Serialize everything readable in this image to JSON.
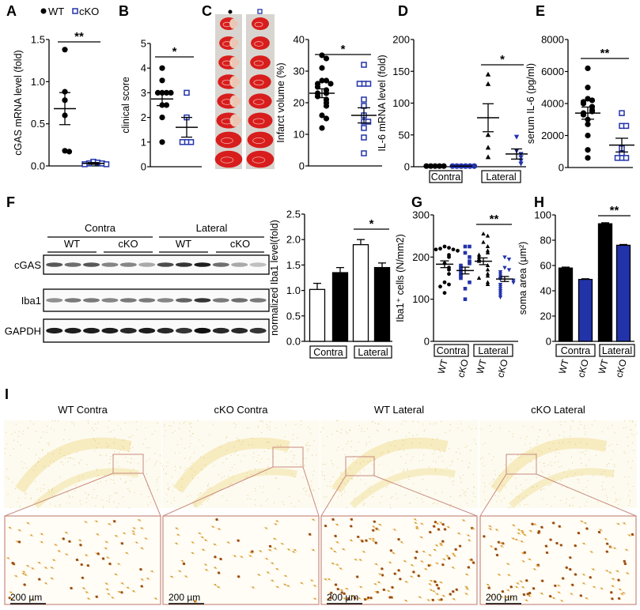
{
  "panel_labels": [
    "A",
    "B",
    "C",
    "D",
    "E",
    "F",
    "G",
    "H",
    "I"
  ],
  "colors": {
    "wt": "#000000",
    "cko": "#2233aa",
    "significance": "#000000",
    "inset_frame": "#c98a7e"
  },
  "panel_c": {
    "legend_markers": [
      "filled-circle",
      "open-square"
    ]
  },
  "panel_f_blot": {
    "header": [
      "Contra",
      "Lateral"
    ],
    "subheader": [
      "WT",
      "cKO",
      "WT",
      "cKO"
    ],
    "rows": [
      "cGAS",
      "Iba1",
      "GAPDH"
    ]
  },
  "panel_i": {
    "titles": [
      "WT Contra",
      "cKO Contra",
      "WT Lateral",
      "cKO Lateral"
    ],
    "scale_bar": "200 µm"
  },
  "chart_data": [
    {
      "panel": "A",
      "type": "scatter",
      "ylabel": "cGAS mRNA level (fold)",
      "ylim": [
        0,
        1.5
      ],
      "yticks": [
        "0.0",
        "0.5",
        "1.0",
        "1.5"
      ],
      "legend": [
        "WT",
        "cKO"
      ],
      "legend_placement": "top",
      "groups": [
        {
          "name": "WT",
          "marker": "filled-circle",
          "color": "#000000",
          "values": [
            1.38,
            0.88,
            0.78,
            0.6,
            0.18,
            0.17
          ],
          "mean": 0.68,
          "sem": 0.19
        },
        {
          "name": "cKO",
          "marker": "open-square",
          "color": "#2233aa",
          "values": [
            0.05,
            0.04,
            0.03,
            0.03,
            0.02,
            0.02
          ],
          "mean": 0.03,
          "sem": 0.01
        }
      ],
      "significance": [
        {
          "groups": [
            0,
            1
          ],
          "label": "**"
        }
      ]
    },
    {
      "panel": "B",
      "type": "scatter",
      "ylabel": "clinical score",
      "ylim": [
        0,
        5
      ],
      "yticks": [
        "0",
        "1",
        "2",
        "3",
        "4",
        "5"
      ],
      "groups": [
        {
          "marker": "filled-circle",
          "color": "#000000",
          "values": [
            4,
            3.5,
            3,
            3,
            3,
            3,
            2.5,
            2.5,
            2,
            1
          ],
          "mean": 2.75,
          "sem": 0.27
        },
        {
          "marker": "open-square",
          "color": "#2233aa",
          "values": [
            3,
            2,
            1,
            1,
            1
          ],
          "mean": 1.6,
          "sem": 0.4
        }
      ],
      "significance": [
        {
          "groups": [
            0,
            1
          ],
          "label": "*"
        }
      ]
    },
    {
      "panel": "C",
      "type": "scatter",
      "ylabel": "Infarct volume (%)",
      "ylim": [
        0,
        40
      ],
      "yticks": [
        "0",
        "10",
        "20",
        "30",
        "40"
      ],
      "groups": [
        {
          "marker": "filled-circle",
          "color": "#000000",
          "values": [
            35,
            34,
            31,
            27,
            27,
            26,
            26,
            25,
            24,
            23,
            23,
            22,
            21,
            20,
            19,
            16,
            15,
            12
          ],
          "mean": 23,
          "sem": 1.4
        },
        {
          "marker": "open-square",
          "color": "#2233aa",
          "values": [
            32,
            26,
            26,
            26,
            21,
            19,
            16,
            14,
            14,
            12,
            9,
            4
          ],
          "mean": 16,
          "sem": 2.4
        }
      ],
      "significance": [
        {
          "groups": [
            0,
            1
          ],
          "label": "*"
        }
      ]
    },
    {
      "panel": "D",
      "type": "scatter",
      "ylabel": "IL-6 mRNA level (fold)",
      "ylim": [
        0,
        200
      ],
      "yticks": [
        "0",
        "50",
        "100",
        "150",
        "200"
      ],
      "group_labels": [
        "Contra",
        "Lateral"
      ],
      "groups": [
        {
          "marker": "filled-circle",
          "color": "#000000",
          "values": [
            1,
            1,
            1,
            1,
            1
          ],
          "mean": 1,
          "sem": 0.1
        },
        {
          "marker": "filled-circle",
          "color": "#2233aa",
          "values": [
            1,
            1,
            1,
            1,
            1,
            1
          ],
          "mean": 1,
          "sem": 0.1
        },
        {
          "marker": "filled-triangle",
          "color": "#000000",
          "values": [
            145,
            130,
            50,
            30,
            15
          ],
          "mean": 77,
          "sem": 22
        },
        {
          "marker": "filled-triangle-down",
          "color": "#2233aa",
          "values": [
            47,
            25,
            20,
            15,
            10,
            5
          ],
          "mean": 20,
          "sem": 8
        }
      ],
      "significance": [
        {
          "groups": [
            2,
            3
          ],
          "label": "*"
        }
      ]
    },
    {
      "panel": "E",
      "type": "scatter",
      "ylabel": "serum IL-6 (pg/ml)",
      "ylim": [
        0,
        8000
      ],
      "yticks": [
        "0",
        "2000",
        "4000",
        "6000",
        "8000"
      ],
      "groups": [
        {
          "marker": "filled-circle",
          "color": "#000000",
          "values": [
            6200,
            5000,
            4300,
            4200,
            4100,
            4000,
            3800,
            3600,
            3500,
            3400,
            3300,
            3000,
            2700,
            2000,
            1100,
            600
          ],
          "mean": 3400,
          "sem": 380
        },
        {
          "marker": "open-square",
          "color": "#2233aa",
          "values": [
            3400,
            2600,
            2600,
            1200,
            900,
            600,
            600,
            600
          ],
          "mean": 1400,
          "sem": 430
        }
      ],
      "significance": [
        {
          "groups": [
            0,
            1
          ],
          "label": "**"
        }
      ]
    },
    {
      "panel": "F",
      "type": "bar",
      "ylabel": "normalized Iba1 level(fold)",
      "ylim": [
        0,
        2.5
      ],
      "yticks": [
        "0.0",
        "0.5",
        "1.0",
        "1.5",
        "2.0",
        "2.5"
      ],
      "group_labels": [
        "Contra",
        "Lateral"
      ],
      "groups": [
        {
          "fill": "#ffffff",
          "mean": 1.02,
          "sem": 0.12
        },
        {
          "fill": "#000000",
          "mean": 1.35,
          "sem": 0.1
        },
        {
          "fill": "#ffffff",
          "mean": 1.9,
          "sem": 0.1
        },
        {
          "fill": "#000000",
          "mean": 1.45,
          "sem": 0.09
        }
      ],
      "significance": [
        {
          "groups": [
            2,
            3
          ],
          "label": "*"
        }
      ]
    },
    {
      "panel": "G",
      "type": "scatter",
      "ylabel": "Iba1⁺ cells (N/mm2)",
      "ylim": [
        0,
        300
      ],
      "yticks": [
        "0",
        "100",
        "200",
        "300"
      ],
      "group_labels": [
        "Contra",
        "Lateral"
      ],
      "xticks": [
        "WT",
        "cKO",
        "WT",
        "cKO"
      ],
      "groups": [
        {
          "marker": "small-circle",
          "color": "#000000",
          "values": [
            225,
            222,
            220,
            218,
            218,
            215,
            205,
            200,
            185,
            175,
            170,
            160,
            140,
            135,
            130,
            115
          ],
          "mean": 183,
          "sem": 8
        },
        {
          "marker": "small-square",
          "color": "#2233aa",
          "values": [
            225,
            225,
            210,
            200,
            190,
            185,
            180,
            175,
            170,
            165,
            160,
            155,
            150,
            140,
            125,
            100
          ],
          "mean": 168,
          "sem": 8
        },
        {
          "marker": "small-triangle",
          "color": "#000000",
          "values": [
            255,
            250,
            235,
            225,
            215,
            210,
            205,
            200,
            195,
            190,
            180,
            170,
            160,
            155,
            150,
            140,
            135
          ],
          "mean": 190,
          "sem": 8
        },
        {
          "marker": "small-triangle-down",
          "color": "#2233aa",
          "values": [
            200,
            195,
            175,
            170,
            165,
            160,
            155,
            150,
            148,
            145,
            140,
            135,
            130,
            125,
            120,
            115,
            110,
            105
          ],
          "mean": 148,
          "sem": 6
        }
      ],
      "significance": [
        {
          "groups": [
            2,
            3
          ],
          "label": "**"
        }
      ]
    },
    {
      "panel": "H",
      "type": "bar",
      "ylabel": "soma area (μm²)",
      "ylim": [
        0,
        100
      ],
      "yticks": [
        "0",
        "20",
        "40",
        "60",
        "80",
        "100"
      ],
      "group_labels": [
        "Contra",
        "Lateral"
      ],
      "xticks": [
        "WT",
        "cKO",
        "WT",
        "cKO"
      ],
      "groups": [
        {
          "fill": "#000000",
          "mean": 58,
          "sem": 0.7
        },
        {
          "fill": "#2233aa",
          "mean": 49,
          "sem": 0.5
        },
        {
          "fill": "#000000",
          "mean": 93,
          "sem": 0.8
        },
        {
          "fill": "#2233aa",
          "mean": 76,
          "sem": 0.6
        }
      ],
      "significance": [
        {
          "groups": [
            2,
            3
          ],
          "label": "**"
        }
      ]
    }
  ]
}
